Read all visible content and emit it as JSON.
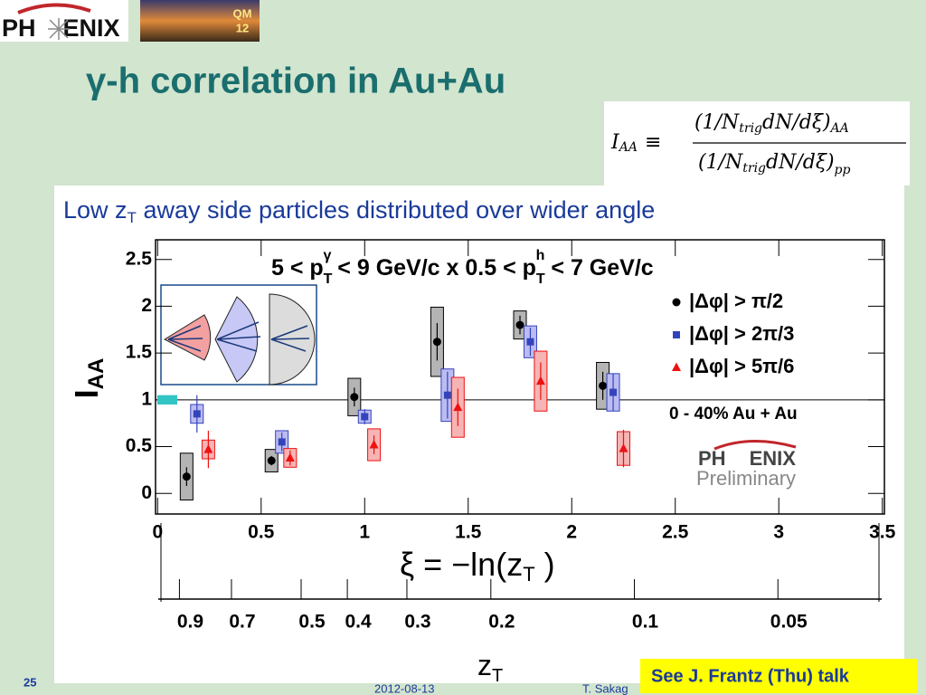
{
  "slide": {
    "logo": [
      "PH",
      "ENIX"
    ],
    "badge": [
      "QM",
      "12"
    ],
    "title": "γ-h correlation in Au+Au",
    "formula": [
      "I",
      "AA",
      "≡",
      "(1/N",
      "trig",
      "dN/dξ)",
      "AA",
      "(1/N",
      "trig",
      "dN/dξ)",
      "pp"
    ],
    "subtitle": [
      "Low z",
      "T",
      " away side particles distributed over wider angle"
    ],
    "page": "25",
    "date": "2012-08-13",
    "author": "T. Sakag",
    "note": "See J. Frantz (Thu) talk"
  },
  "chart_data": {
    "type": "scatter",
    "title": [
      "5 < p",
      "T",
      "γ",
      " < 9 GeV/c x 0.5 < p",
      "T",
      "h",
      " < 7 GeV/c"
    ],
    "y_label": [
      "I",
      "AA"
    ],
    "x_label": [
      "ξ = −ln",
      "(",
      "z",
      "T",
      " )"
    ],
    "x2_label": [
      "z",
      "T"
    ],
    "annotation": "0 - 40% Au + Au",
    "watermark": [
      "PH",
      "ENIX",
      "Preliminary"
    ],
    "xlim": [
      -0.01,
      3.51
    ],
    "ylim": [
      -0.22,
      2.71
    ],
    "xticks": [
      0,
      0.5,
      1,
      1.5,
      2,
      2.5,
      3,
      3.5
    ],
    "yticks": [
      0,
      0.5,
      1,
      1.5,
      2,
      2.5
    ],
    "x2ticks": [
      0.9,
      0.7,
      0.5,
      0.4,
      0.3,
      0.2,
      0.1,
      0.05
    ],
    "x2_scale": "-ln",
    "hline": 1,
    "norm_uncertainty": 0.05,
    "norm_color": "#33c4c4",
    "grid": false,
    "series": [
      {
        "name": [
          "|Δφ| > ",
          "π/2"
        ],
        "color": "#000000",
        "box_color": "#b4b4b4",
        "marker": "circle",
        "x": [
          0.14,
          0.55,
          0.95,
          1.35,
          1.75,
          2.15
        ],
        "values": [
          0.18,
          0.35,
          1.03,
          1.62,
          1.8,
          1.15
        ],
        "stat": [
          0.1,
          0.05,
          0.1,
          0.2,
          0.1,
          0.15
        ],
        "sys": [
          0.25,
          0.12,
          0.2,
          0.37,
          0.15,
          0.25
        ]
      },
      {
        "name": [
          "|Δφ| > ",
          "2π/3"
        ],
        "color": "#3344bb",
        "box_color": "#bcbcf2",
        "marker": "square",
        "x": [
          0.19,
          0.6,
          1.0,
          1.4,
          1.8,
          2.2
        ],
        "values": [
          0.85,
          0.55,
          0.82,
          1.05,
          1.62,
          1.08
        ],
        "stat": [
          0.2,
          0.1,
          0.08,
          0.25,
          0.15,
          0.2
        ],
        "sys": [
          0.1,
          0.12,
          0.07,
          0.28,
          0.17,
          0.2
        ]
      },
      {
        "name": [
          "|Δφ| > ",
          "5π/6"
        ],
        "color": "#ee1111",
        "box_color": "#f6b4b4",
        "marker": "triangle",
        "x": [
          0.245,
          0.64,
          1.045,
          1.45,
          1.85,
          2.25
        ],
        "values": [
          0.47,
          0.38,
          0.52,
          0.92,
          1.2,
          0.48
        ],
        "stat": [
          0.2,
          0.08,
          0.1,
          0.2,
          0.2,
          0.2
        ],
        "sys": [
          0.1,
          0.1,
          0.17,
          0.32,
          0.32,
          0.18
        ]
      }
    ]
  }
}
